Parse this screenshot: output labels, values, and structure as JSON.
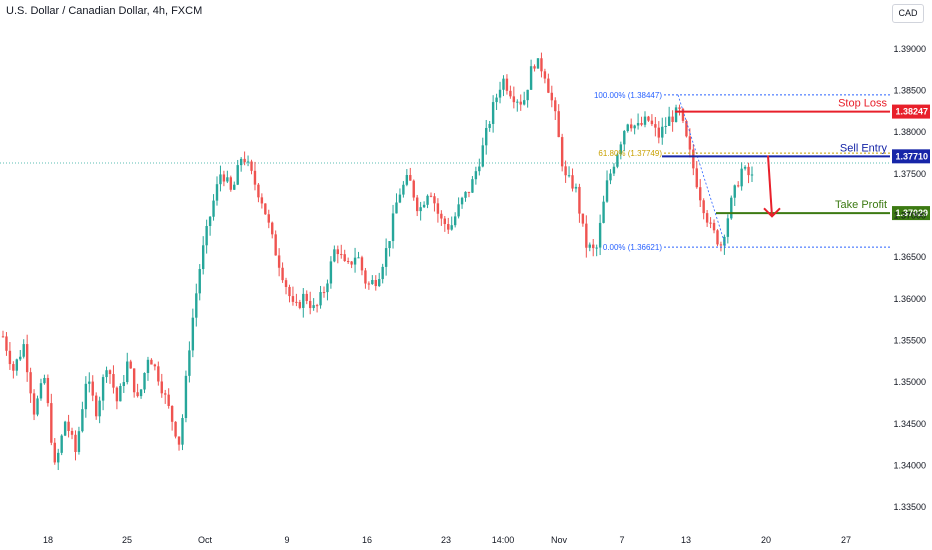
{
  "header": {
    "title": "U.S. Dollar / Canadian Dollar, 4h, FXCM",
    "currency": "CAD"
  },
  "chart_data": {
    "type": "candlestick",
    "ylim": [
      1.3325,
      1.3925
    ],
    "y_ticks": [
      "1.39000",
      "1.38500",
      "1.38000",
      "1.37500",
      "1.37000",
      "1.36500",
      "1.36000",
      "1.35500",
      "1.35000",
      "1.34500",
      "1.34000",
      "1.33500"
    ],
    "x_ticks": [
      "18",
      "25",
      "Oct",
      "9",
      "16",
      "23",
      "14:00",
      "Nov",
      "7",
      "13",
      "20",
      "27"
    ],
    "ohlc_path": [
      1.3555,
      1.3515,
      1.3545,
      1.3465,
      1.3505,
      1.3395,
      1.3455,
      1.3415,
      1.3505,
      1.3465,
      1.3525,
      1.3475,
      1.3525,
      1.3475,
      1.3535,
      1.3505,
      1.3465,
      1.3425,
      1.3555,
      1.3645,
      1.3705,
      1.3755,
      1.3725,
      1.3775,
      1.3745,
      1.3715,
      1.3665,
      1.3625,
      1.3585,
      1.3605,
      1.3585,
      1.3615,
      1.3665,
      1.3635,
      1.3655,
      1.3615,
      1.3625,
      1.3665,
      1.3725,
      1.3745,
      1.3705,
      1.3735,
      1.3695,
      1.3685,
      1.3715,
      1.3735,
      1.3775,
      1.3825,
      1.3865,
      1.3845,
      1.3835,
      1.3885,
      1.3875,
      1.3825,
      1.3745,
      1.3735,
      1.3665,
      1.3655,
      1.3735,
      1.3775,
      1.3815,
      1.3805,
      1.3815,
      1.3795,
      1.3815,
      1.3825,
      1.3775,
      1.3725,
      1.3685,
      1.3665,
      1.3715,
      1.3755,
      1.3745
    ],
    "fibonacci": [
      {
        "label": "100.00% (1.38447)",
        "value": 1.38447
      },
      {
        "label": "61.80% (1.37749)",
        "value": 1.37749
      },
      {
        "label": "0.00% (1.36621)",
        "value": 1.36621
      }
    ],
    "levels": [
      {
        "name": "Stop Loss",
        "value": 1.38247,
        "tag": "1.38247",
        "color": "#e8202b"
      },
      {
        "name": "Sell Entry",
        "value": 1.3771,
        "tag": "1.37710",
        "color": "#1625a8"
      },
      {
        "name": "Take Profit",
        "value": 1.37029,
        "tag": "1.37029",
        "color": "#3c7a12"
      }
    ],
    "colors": {
      "up": "#26a69a",
      "down": "#ef5350",
      "fib": "#2962ff"
    }
  }
}
